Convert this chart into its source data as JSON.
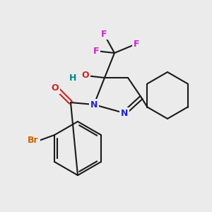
{
  "bg_color": "#ebebeb",
  "bond_color": "#1a1a1a",
  "N_color": "#2222cc",
  "O_color": "#cc2222",
  "F_color": "#cc22cc",
  "Br_color": "#cc6600",
  "H_color": "#008888",
  "lw": 1.5,
  "figsize": [
    3.0,
    3.0
  ],
  "dpi": 100,
  "xlim": [
    0,
    300
  ],
  "ylim": [
    0,
    300
  ]
}
